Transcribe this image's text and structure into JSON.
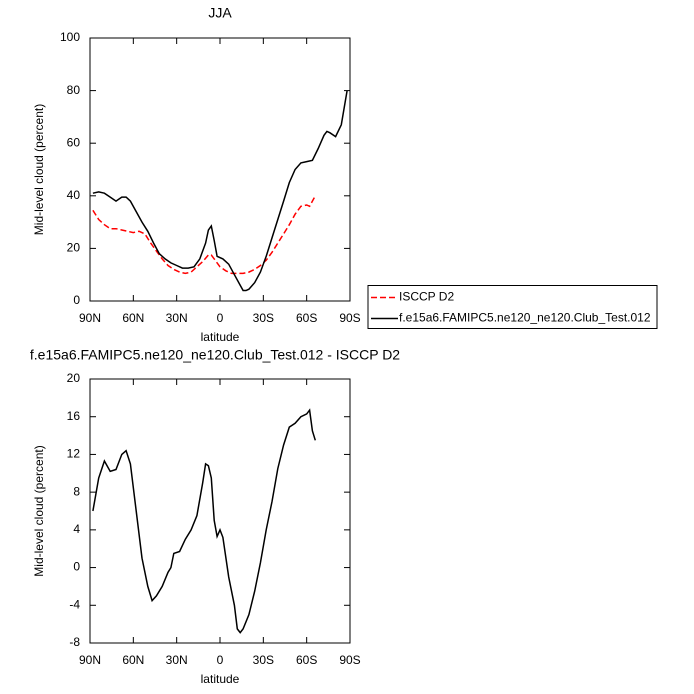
{
  "chart_data": [
    {
      "type": "line",
      "title": "JJA",
      "xlabel": "latitude",
      "ylabel": "Mid-level cloud (percent)",
      "xlim": [
        90,
        -90
      ],
      "xticks": [
        {
          "value": 90,
          "label": "90N"
        },
        {
          "value": 60,
          "label": "60N"
        },
        {
          "value": 30,
          "label": "30N"
        },
        {
          "value": 0,
          "label": "0"
        },
        {
          "value": -30,
          "label": "30S"
        },
        {
          "value": -60,
          "label": "60S"
        },
        {
          "value": -90,
          "label": "90S"
        }
      ],
      "ylim": [
        0,
        100
      ],
      "yticks": [
        0,
        20,
        40,
        60,
        80,
        100
      ],
      "legend": "right",
      "series": [
        {
          "name": "ISCCP D2",
          "color": "#ff0000",
          "dashed": true,
          "x": [
            88,
            84,
            80,
            76,
            72,
            68,
            64,
            60,
            56,
            52,
            48,
            44,
            40,
            36,
            32,
            28,
            24,
            20,
            16,
            12,
            8,
            6,
            4,
            0,
            -4,
            -8,
            -12,
            -16,
            -20,
            -24,
            -28,
            -32,
            -36,
            -40,
            -44,
            -48,
            -52,
            -56,
            -60,
            -62,
            -64,
            -66
          ],
          "values": [
            34.5,
            31,
            29,
            27.5,
            27.5,
            27,
            26.5,
            26,
            26.5,
            25.5,
            22,
            19,
            16,
            13.5,
            12,
            11,
            10.5,
            11,
            13,
            15,
            17.5,
            17.5,
            16,
            13,
            11.5,
            10.5,
            10.5,
            10.5,
            11,
            12,
            13.5,
            15.5,
            18.5,
            22,
            25.5,
            29,
            33,
            36,
            36.5,
            36,
            38,
            40
          ]
        },
        {
          "name": "f.e15a6.FAMIPC5.ne120_ne120.Club_Test.012",
          "color": "#000000",
          "dashed": false,
          "x": [
            88,
            84,
            80,
            76,
            72,
            68,
            65,
            62,
            58,
            54,
            50,
            46,
            42,
            38,
            34,
            30,
            26,
            22,
            18,
            14,
            10,
            8,
            6,
            4,
            2,
            -2,
            -6,
            -10,
            -14,
            -16,
            -18,
            -20,
            -24,
            -28,
            -32,
            -36,
            -40,
            -44,
            -48,
            -52,
            -56,
            -60,
            -64,
            -68,
            -72,
            -74,
            -76,
            -80,
            -84,
            -88
          ],
          "values": [
            41,
            41.5,
            41,
            39.5,
            38,
            39.5,
            39.5,
            38,
            34,
            30,
            26.5,
            22,
            18,
            16,
            14.5,
            13.5,
            12.5,
            12.5,
            13,
            16,
            22,
            27,
            28.5,
            23,
            17,
            16,
            14,
            10,
            6,
            4,
            4,
            4.5,
            7,
            11,
            17,
            24,
            31,
            38,
            45,
            50,
            52.5,
            53,
            53.5,
            58,
            63,
            64.5,
            64,
            62.5,
            67,
            80
          ]
        }
      ]
    },
    {
      "type": "line",
      "title": "f.e15a6.FAMIPC5.ne120_ne120.Club_Test.012 - ISCCP D2",
      "xlabel": "latitude",
      "ylabel": "Mid-level cloud (percent)",
      "xlim": [
        90,
        -90
      ],
      "xticks": [
        {
          "value": 90,
          "label": "90N"
        },
        {
          "value": 60,
          "label": "60N"
        },
        {
          "value": 30,
          "label": "30N"
        },
        {
          "value": 0,
          "label": "0"
        },
        {
          "value": -30,
          "label": "30S"
        },
        {
          "value": -60,
          "label": "60S"
        },
        {
          "value": -90,
          "label": "90S"
        }
      ],
      "ylim": [
        -8,
        20
      ],
      "yticks": [
        -8,
        -4,
        0,
        4,
        8,
        12,
        16,
        20
      ],
      "color": "#000000",
      "x": [
        88,
        84,
        80,
        76,
        72,
        68,
        65,
        62,
        58,
        54,
        50,
        47,
        44,
        40,
        36,
        34,
        32,
        28,
        24,
        20,
        16,
        12,
        10,
        8,
        6,
        4,
        2,
        0,
        -2,
        -6,
        -10,
        -12,
        -14,
        -16,
        -20,
        -24,
        -28,
        -32,
        -36,
        -40,
        -44,
        -48,
        -52,
        -56,
        -60,
        -62,
        -64,
        -66
      ],
      "values": [
        6,
        9.5,
        11.3,
        10.2,
        10.4,
        12,
        12.4,
        11,
        6,
        1,
        -2,
        -3.5,
        -3,
        -2,
        -0.5,
        0,
        1.5,
        1.7,
        3,
        4,
        5.5,
        9,
        11,
        10.8,
        9.5,
        5,
        3.3,
        4,
        3.2,
        -1,
        -4,
        -6.5,
        -6.9,
        -6.5,
        -5,
        -2.5,
        0.5,
        4,
        7,
        10.5,
        13,
        14.9,
        15.3,
        16,
        16.3,
        16.7,
        14.5,
        13.5
      ]
    }
  ]
}
